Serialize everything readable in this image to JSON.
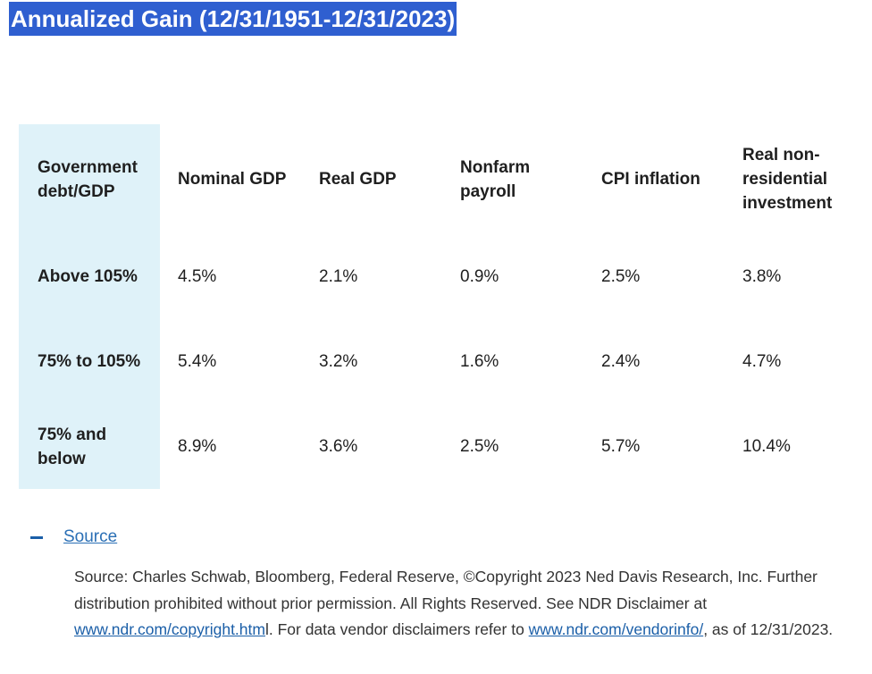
{
  "title": "Annualized Gain (12/31/1951-12/31/2023)",
  "table": {
    "headers": [
      "Government debt/GDP",
      "Nominal GDP",
      "Real GDP",
      "Nonfarm payroll",
      "CPI inflation",
      "Real non-residential investment"
    ],
    "rows": [
      {
        "label": "Above 105%",
        "values": [
          "4.5%",
          "2.1%",
          "0.9%",
          "2.5%",
          "3.8%"
        ]
      },
      {
        "label": "75% to 105%",
        "values": [
          "5.4%",
          "3.2%",
          "1.6%",
          "2.4%",
          "4.7%"
        ]
      },
      {
        "label": "75% and below",
        "values": [
          "8.9%",
          "3.6%",
          "2.5%",
          "5.7%",
          "10.4%"
        ]
      }
    ],
    "first_column_color": "#dff2f9"
  },
  "source": {
    "toggle_icon": "minus-icon",
    "toggle_label": "Source",
    "text_1": "Source: Charles Schwab, Bloomberg, Federal Reserve, ©Copyright 2023 Ned Davis Research, Inc. Further distribution prohibited without prior permission. All Rights Reserved. See NDR Disclaimer at ",
    "link_1": "www.ndr.com/copyright.htm",
    "text_2": "l. For data vendor disclaimers refer to ",
    "link_2": "www.ndr.com/vendorinfo/",
    "text_3": ", as of 12/31/2023."
  },
  "colors": {
    "title_highlight": "#2f5fd0",
    "link": "#2a6fb5"
  }
}
